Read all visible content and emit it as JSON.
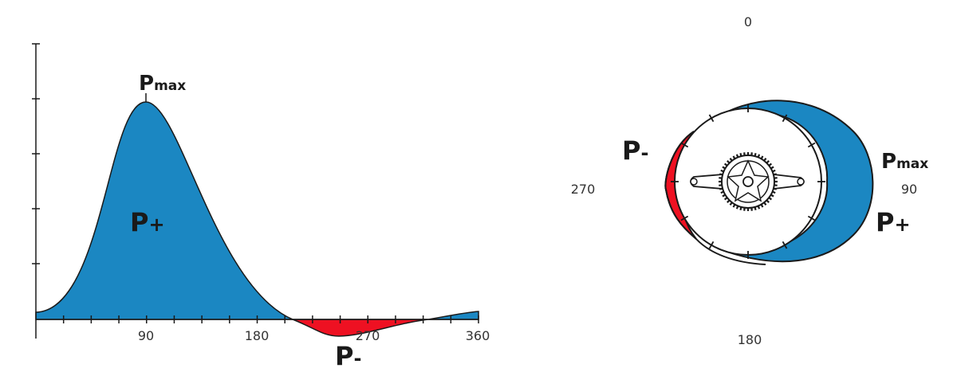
{
  "chart_data": {
    "type": "area",
    "x_ticks": [
      "90",
      "180",
      "270",
      "360"
    ],
    "peak_label": {
      "main": "P",
      "sub": "max"
    },
    "positive_label": {
      "main": "P",
      "sub": "+"
    },
    "negative_label": {
      "main": "P",
      "sub": "-"
    }
  },
  "polar_diagram": {
    "angle_labels": {
      "top": "0",
      "right": "90",
      "bottom": "180",
      "left": "270"
    },
    "peak_label": {
      "main": "P",
      "sub": "max"
    },
    "positive_label": {
      "main": "P",
      "sub": "+"
    },
    "negative_label": {
      "main": "P",
      "sub": "-"
    }
  },
  "colors": {
    "positive": "#1b87c2",
    "negative": "#ee1122",
    "outline": "#1a1a1a",
    "crank_fill": "#ffffff"
  }
}
